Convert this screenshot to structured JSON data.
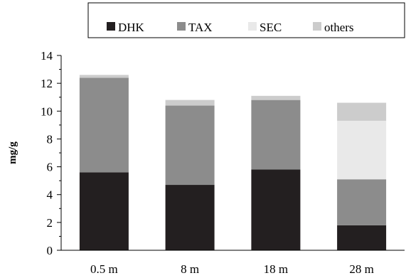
{
  "chart_data": {
    "type": "bar",
    "stacked": true,
    "categories": [
      "0.5 m",
      "8 m",
      "18 m",
      "28 m"
    ],
    "series": [
      {
        "name": "DHK",
        "values": [
          5.6,
          4.7,
          5.8,
          1.8
        ],
        "color": "#231f20"
      },
      {
        "name": "TAX",
        "values": [
          6.8,
          5.7,
          5.0,
          3.3
        ],
        "color": "#8c8c8c"
      },
      {
        "name": "SEC",
        "values": [
          0.0,
          0.0,
          0.0,
          4.2
        ],
        "color": "#e9e9e9"
      },
      {
        "name": "others",
        "values": [
          0.2,
          0.4,
          0.3,
          1.3
        ],
        "color": "#cccccc"
      }
    ],
    "title": "",
    "xlabel": "",
    "ylabel": "mg/g",
    "ylim": [
      0,
      14
    ],
    "yticks": [
      0,
      2,
      4,
      6,
      8,
      10,
      12,
      14
    ],
    "grid": false,
    "legend_position": "top"
  }
}
